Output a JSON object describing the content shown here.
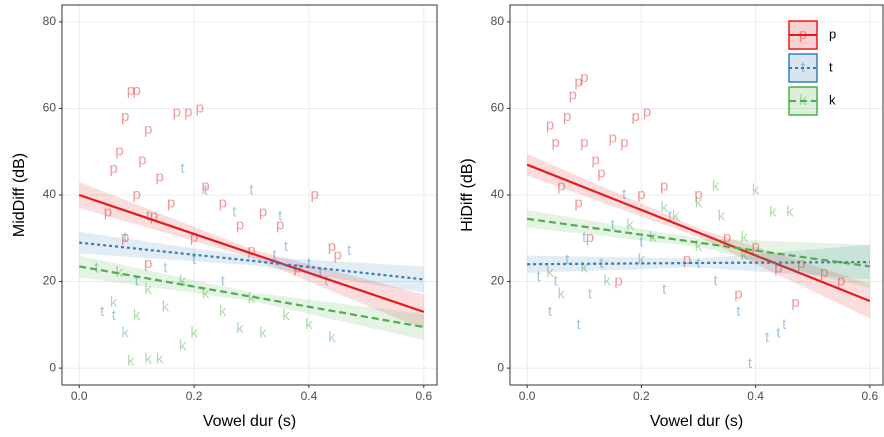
{
  "chart_data": [
    {
      "type": "scatter",
      "xlabel": "Vowel dur (s)",
      "ylabel": "MidDiff (dB)",
      "xlim": [
        -0.03,
        0.623
      ],
      "ylim": [
        -3.9,
        83.9
      ],
      "xticks": [
        {
          "value": 0,
          "label": "0.0"
        },
        0.2,
        0.4,
        0.6
      ],
      "yticks": [
        0,
        20,
        40,
        60,
        80
      ],
      "grid": true,
      "series": [
        {
          "name": "p",
          "color": "#e41a1c",
          "line_style": "solid",
          "x": [
            0.09,
            0.1,
            0.08,
            0.12,
            0.17,
            0.21,
            0.19,
            0.07,
            0.06,
            0.11,
            0.14,
            0.1,
            0.05,
            0.13,
            0.16,
            0.22,
            0.25,
            0.28,
            0.32,
            0.35,
            0.41,
            0.44,
            0.38,
            0.3,
            0.08,
            0.12,
            0.2,
            0.45
          ],
          "values": [
            64,
            64,
            58,
            55,
            59,
            60,
            59,
            50,
            46,
            48,
            44,
            40,
            36,
            35,
            38,
            42,
            38,
            33,
            36,
            33,
            40,
            28,
            23,
            27,
            30,
            24,
            30,
            26
          ],
          "fit": {
            "x": [
              0,
              0.3,
              0.6
            ],
            "y": [
              40,
              26.5,
              13
            ],
            "lower": [
              37,
              25.5,
              9
            ],
            "upper": [
              43,
              27.5,
              17
            ]
          }
        },
        {
          "name": "t",
          "color": "#377eb8",
          "line_style": "dotted",
          "x": [
            0.04,
            0.03,
            0.08,
            0.12,
            0.18,
            0.22,
            0.27,
            0.3,
            0.35,
            0.34,
            0.4,
            0.42,
            0.43,
            0.25,
            0.15,
            0.1,
            0.36,
            0.47,
            0.2,
            0.06
          ],
          "values": [
            13,
            23,
            30,
            35,
            46,
            41,
            36,
            41,
            35,
            26,
            24,
            22,
            20,
            20,
            23,
            20,
            28,
            27,
            25,
            12
          ],
          "fit": {
            "x": [
              0,
              0.3,
              0.6
            ],
            "y": [
              29,
              24.8,
              20.5
            ],
            "lower": [
              26.5,
              23.8,
              17.5
            ],
            "upper": [
              31.5,
              25.8,
              23.5
            ]
          }
        },
        {
          "name": "k",
          "color": "#4daf4a",
          "line_style": "dashed",
          "x": [
            0.06,
            0.09,
            0.12,
            0.14,
            0.08,
            0.1,
            0.15,
            0.18,
            0.22,
            0.25,
            0.28,
            0.32,
            0.36,
            0.4,
            0.44,
            0.18,
            0.12,
            0.07,
            0.3,
            0.2
          ],
          "values": [
            15,
            1.5,
            2,
            2,
            8,
            12,
            14,
            20,
            17,
            13,
            9,
            8,
            12,
            10,
            7,
            5,
            18,
            22,
            16,
            8
          ],
          "fit": {
            "x": [
              0,
              0.3,
              0.6
            ],
            "y": [
              23.5,
              16.5,
              9.5
            ],
            "lower": [
              21,
              15.5,
              6.5
            ],
            "upper": [
              26,
              17.5,
              12.5
            ]
          }
        }
      ]
    },
    {
      "type": "scatter",
      "xlabel": "Vowel dur (s)",
      "ylabel": "HiDiff (dB)",
      "xlim": [
        -0.03,
        0.623
      ],
      "ylim": [
        -3.9,
        83.9
      ],
      "xticks": [
        {
          "value": 0,
          "label": "0.0"
        },
        0.2,
        0.4,
        0.6
      ],
      "yticks": [
        0,
        20,
        40,
        60,
        80
      ],
      "grid": true,
      "legend": "top-right",
      "series": [
        {
          "name": "p",
          "color": "#e41a1c",
          "line_style": "solid",
          "x": [
            0.09,
            0.1,
            0.08,
            0.05,
            0.04,
            0.07,
            0.1,
            0.12,
            0.15,
            0.19,
            0.21,
            0.17,
            0.13,
            0.06,
            0.09,
            0.2,
            0.24,
            0.3,
            0.35,
            0.4,
            0.44,
            0.48,
            0.52,
            0.28,
            0.16,
            0.11,
            0.37,
            0.47,
            0.55
          ],
          "values": [
            66,
            67,
            63,
            52,
            56,
            58,
            52,
            48,
            53,
            58,
            59,
            52,
            45,
            42,
            38,
            40,
            42,
            40,
            30,
            28,
            23,
            24,
            22,
            25,
            20,
            30,
            17,
            15,
            20
          ],
          "fit": {
            "x": [
              0,
              0.3,
              0.6
            ],
            "y": [
              47,
              31.3,
              15.5
            ],
            "lower": [
              44.5,
              30.3,
              11.5
            ],
            "upper": [
              49.5,
              32.3,
              19.5
            ]
          }
        },
        {
          "name": "t",
          "color": "#377eb8",
          "line_style": "dotted",
          "x": [
            0.04,
            0.05,
            0.07,
            0.1,
            0.13,
            0.09,
            0.11,
            0.15,
            0.17,
            0.2,
            0.25,
            0.3,
            0.33,
            0.37,
            0.39,
            0.42,
            0.44,
            0.45,
            0.02,
            0.24
          ],
          "values": [
            13,
            20,
            25,
            30,
            24,
            10,
            17,
            33,
            40,
            29,
            35,
            24,
            20,
            13,
            1,
            7,
            8,
            10,
            21,
            18
          ],
          "fit": {
            "x": [
              0,
              0.3,
              0.6
            ],
            "y": [
              24,
              24.3,
              24.5
            ],
            "lower": [
              22,
              23.3,
              20.5
            ],
            "upper": [
              26,
              25.3,
              28.5
            ]
          }
        },
        {
          "name": "k",
          "color": "#4daf4a",
          "line_style": "dashed",
          "x": [
            0.04,
            0.06,
            0.1,
            0.14,
            0.18,
            0.22,
            0.26,
            0.3,
            0.34,
            0.38,
            0.4,
            0.43,
            0.46,
            0.38,
            0.3,
            0.2,
            0.24,
            0.33
          ],
          "values": [
            22,
            17,
            23,
            20,
            33,
            30,
            35,
            38,
            35,
            30,
            41,
            36,
            36,
            26,
            28,
            25,
            37,
            42
          ],
          "fit": {
            "x": [
              0,
              0.3,
              0.6
            ],
            "y": [
              34.5,
              29,
              23.5
            ],
            "lower": [
              32.5,
              28,
              18.5
            ],
            "upper": [
              36.5,
              30,
              28.5
            ]
          }
        }
      ]
    }
  ]
}
